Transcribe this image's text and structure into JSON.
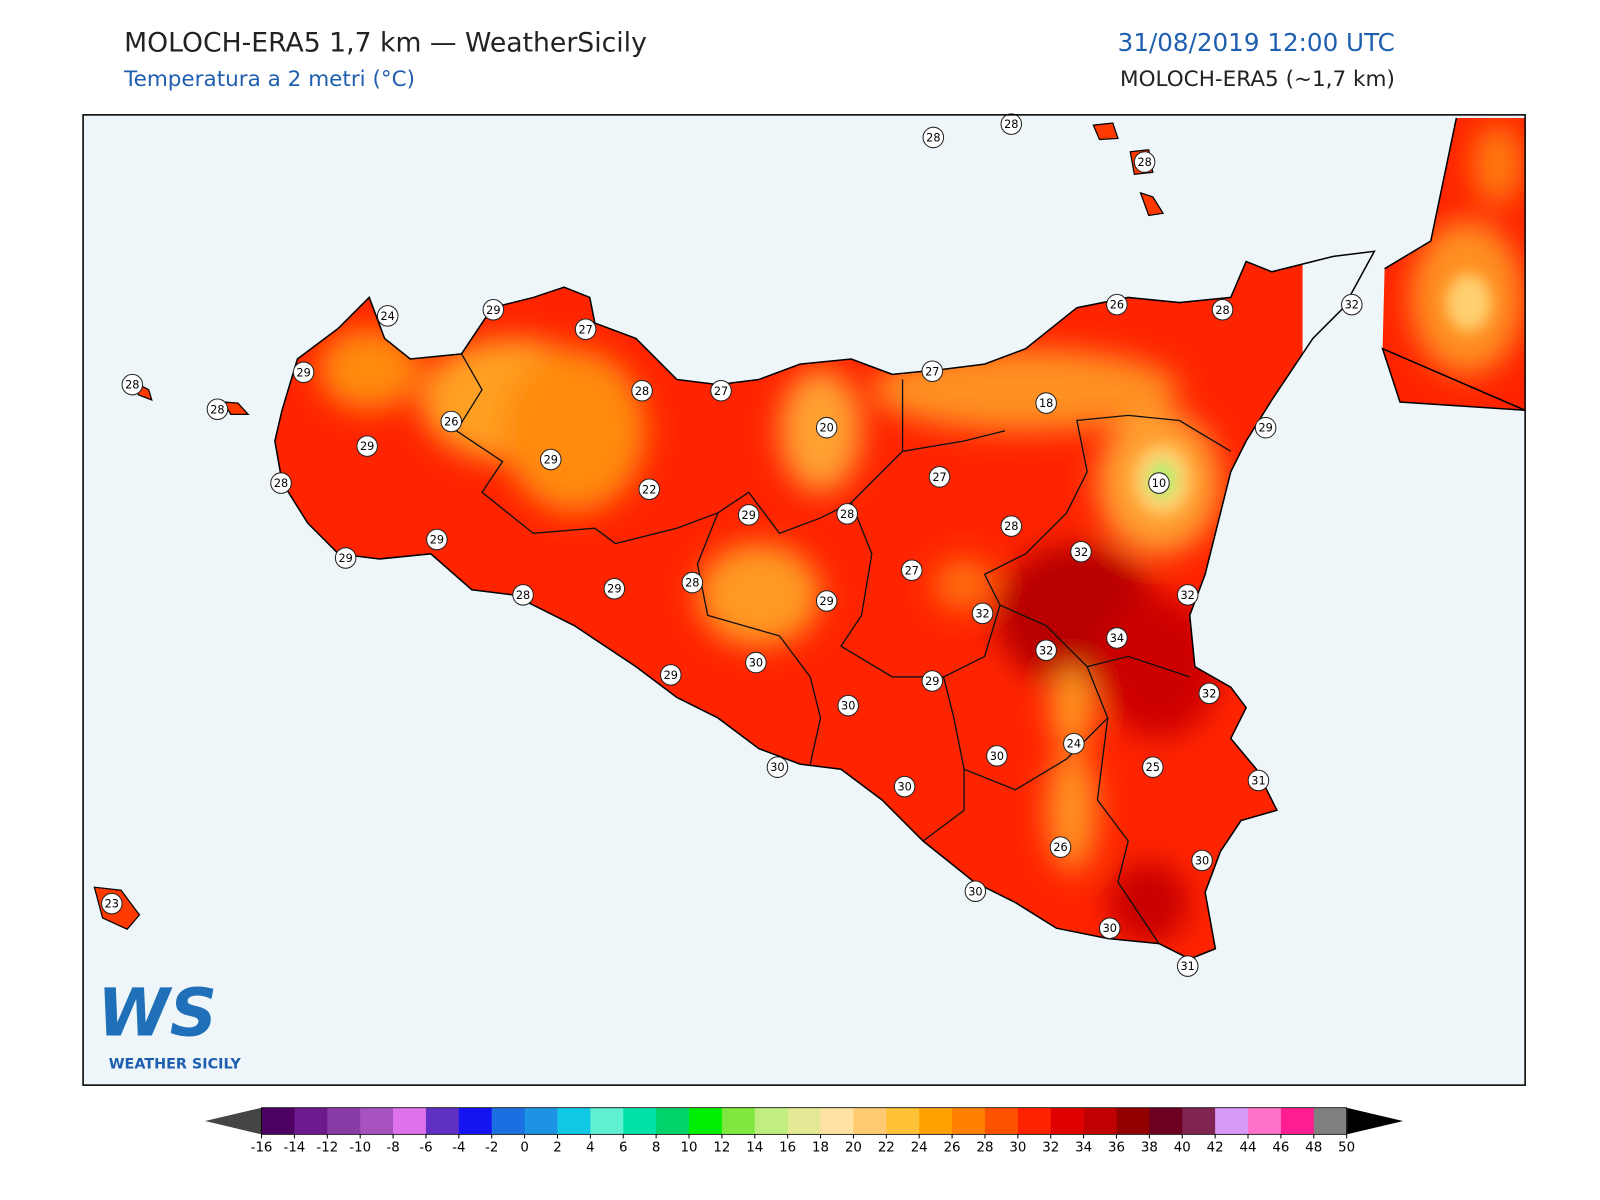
{
  "header": {
    "title": "MOLOCH-ERA5 1,7 km — WeatherSicily",
    "subtitle": "Temperatura a 2 metri (°C)",
    "datetime": "31/08/2019 12:00 UTC",
    "model": "MOLOCH-ERA5 (~1,7 km)"
  },
  "stations": [
    24,
    29,
    27,
    29,
    28,
    28,
    26,
    29,
    28,
    29,
    28,
    27,
    20,
    22,
    29,
    28,
    29,
    29,
    28,
    29,
    28,
    29,
    30,
    29,
    30,
    30,
    28,
    28,
    28,
    26,
    28,
    32,
    27,
    18,
    29,
    10,
    27,
    28,
    32,
    27,
    32,
    32,
    32,
    34,
    29,
    32,
    24,
    25,
    30,
    30,
    31,
    26,
    30,
    30,
    30,
    31,
    23
  ],
  "colorbar": {
    "ticks": [
      -16,
      -14,
      -12,
      -10,
      -8,
      -6,
      -4,
      -2,
      0,
      2,
      4,
      6,
      8,
      10,
      12,
      14,
      16,
      18,
      20,
      22,
      24,
      26,
      28,
      30,
      32,
      34,
      36,
      38,
      40,
      42,
      44,
      46,
      48,
      50
    ],
    "colors": [
      "#4b0062",
      "#6c1a8e",
      "#8a3ca6",
      "#a653bf",
      "#dd72ea",
      "#6030c4",
      "#1414f2",
      "#1c6fe0",
      "#1c92e2",
      "#10c9e6",
      "#5ff0d0",
      "#00e2aa",
      "#00d36a",
      "#00ee00",
      "#7fe83e",
      "#c0ee80",
      "#e2e894",
      "#ffe2a2",
      "#ffca72",
      "#ffc236",
      "#ffa200",
      "#ff8000",
      "#ff5200",
      "#ff2200",
      "#e10000",
      "#c00000",
      "#920000",
      "#6e0022",
      "#802452",
      "#d89af8",
      "#ff72ca",
      "#ff1e92",
      "#808080",
      "#3a3a3a"
    ],
    "under": "#454545",
    "over": "#000000"
  },
  "logo": {
    "mark": "WS",
    "text": "WEATHER SICILY"
  }
}
